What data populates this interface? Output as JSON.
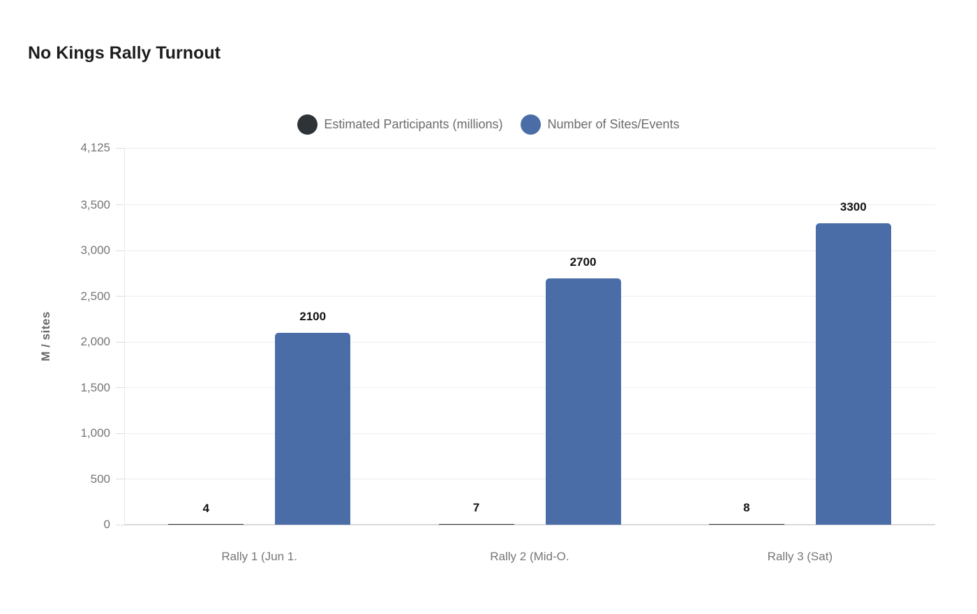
{
  "chart_data": {
    "type": "bar",
    "title": "No Kings Rally Turnout",
    "categories": [
      "Rally 1 (Jun 1.",
      "Rally 2 (Mid-O.",
      "Rally 3 (Sat)"
    ],
    "series": [
      {
        "name": "Estimated Participants (millions)",
        "color": "#2e3338",
        "values": [
          4,
          7,
          8
        ]
      },
      {
        "name": "Number of Sites/Events",
        "color": "#4a6da7",
        "values": [
          2100,
          2700,
          3300
        ]
      }
    ],
    "value_labels": [
      [
        "4",
        "7",
        "8"
      ],
      [
        "2100",
        "2700",
        "3300"
      ]
    ],
    "show_values": true,
    "xlabel": "",
    "ylabel": "M / sites",
    "ylim": [
      0,
      4125
    ],
    "yticks": [
      0,
      500,
      1000,
      1500,
      2000,
      2500,
      3000,
      3500,
      4125
    ],
    "ytick_labels": [
      "0",
      "500",
      "1,000",
      "1,500",
      "2,000",
      "2,500",
      "3,000",
      "3,500",
      "4,125"
    ],
    "grid": true,
    "legend_position": "top"
  },
  "colors": {
    "background": "#ffffff",
    "title_text": "#1d1d1d",
    "legend_text": "#6b6b6b",
    "axis_title_text": "#666666",
    "tick_text": "#757575",
    "value_label_text": "#121212",
    "gridline": "#eeeeee",
    "baseline": "#d9d9d9",
    "series_participants": "#2e3338",
    "series_sites": "#4a6da7"
  }
}
